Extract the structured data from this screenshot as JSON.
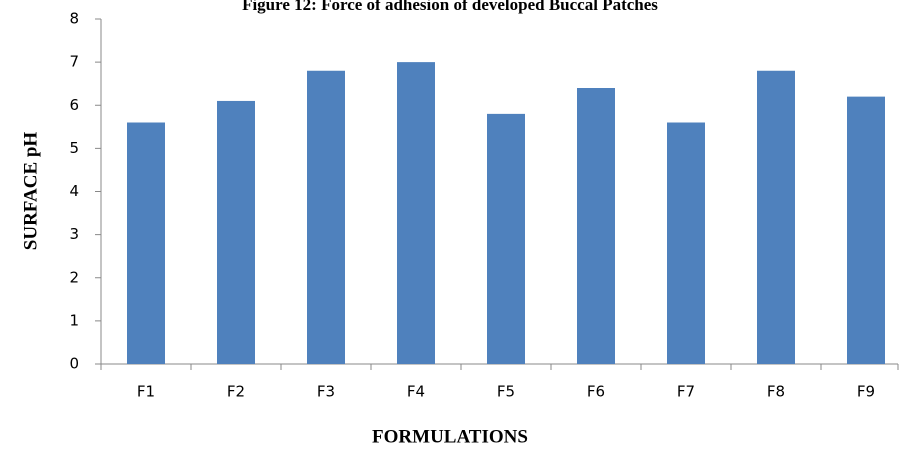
{
  "chart_data": {
    "type": "bar",
    "title": "Figure 12: Force of adhesion of developed Buccal Patches",
    "xlabel": "FORMULATIONS",
    "ylabel": "SURFACE pH",
    "categories": [
      "F1",
      "F2",
      "F3",
      "F4",
      "F5",
      "F6",
      "F7",
      "F8",
      "F9"
    ],
    "values": [
      5.6,
      6.1,
      6.8,
      7.0,
      5.8,
      6.4,
      5.6,
      6.8,
      6.2
    ],
    "color": "#4f81bd",
    "ylim": [
      0,
      8
    ],
    "yticks": [
      0,
      1,
      2,
      3,
      4,
      5,
      6,
      7,
      8
    ],
    "grid": false
  }
}
